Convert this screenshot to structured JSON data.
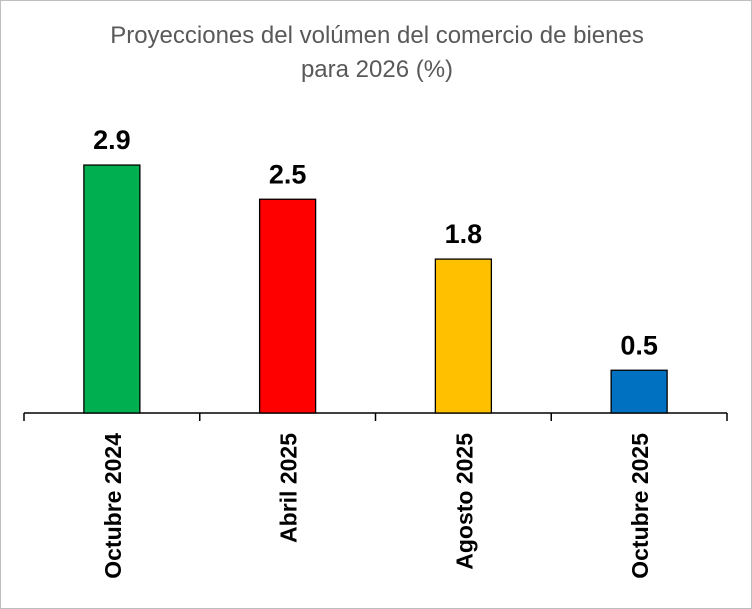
{
  "chart_data": {
    "type": "bar",
    "title_lines": [
      "Proyecciones del volúmen del comercio de bienes",
      "para 2026 (%)"
    ],
    "categories": [
      "Octubre 2024",
      "Abril 2025",
      "Agosto 2025",
      "Octubre 2025"
    ],
    "values": [
      2.9,
      2.5,
      1.8,
      0.5
    ],
    "data_labels": [
      "2.9",
      "2.5",
      "1.8",
      "0.5"
    ],
    "colors": [
      "#00b050",
      "#ff0000",
      "#ffc000",
      "#0070c0"
    ],
    "ylim": [
      0,
      3
    ],
    "grid": false,
    "legend": "none"
  }
}
